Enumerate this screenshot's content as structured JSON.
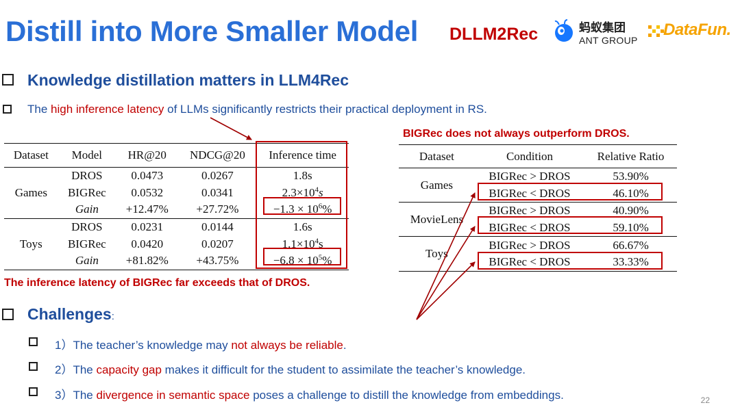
{
  "header": {
    "title": "Distill into More Smaller Model",
    "brand": "DLLM2Rec",
    "ant_group_cn": "蚂蚁集团",
    "ant_group_en": "ANT GROUP",
    "datafun": "DataFun."
  },
  "section1": {
    "heading": "Knowledge distillation matters in LLM4Rec",
    "point_prefix": "The ",
    "point_highlight": "high inference latency",
    "point_suffix": " of LLMs significantly restricts their practical deployment in RS."
  },
  "table1": {
    "headers": [
      "Dataset",
      "Model",
      "HR@20",
      "NDCG@20",
      "Inference time"
    ],
    "groups": [
      {
        "dataset": "Games",
        "rows": [
          {
            "model": "DROS",
            "hr": "0.0473",
            "ndcg": "0.0267",
            "time": "1.8s"
          },
          {
            "model": "BIGRec",
            "hr": "0.0532",
            "ndcg": "0.0341",
            "time_base": "2.3×10",
            "time_exp": "4",
            "time_unit": "s"
          },
          {
            "model": "Gain",
            "hr": "+12.47%",
            "ndcg": "+27.72%",
            "time_base": "−1.3 × 10",
            "time_exp": "6",
            "time_unit": "%"
          }
        ]
      },
      {
        "dataset": "Toys",
        "rows": [
          {
            "model": "DROS",
            "hr": "0.0231",
            "ndcg": "0.0144",
            "time": "1.6s"
          },
          {
            "model": "BIGRec",
            "hr": "0.0420",
            "ndcg": "0.0207",
            "time_base": "1.1×10",
            "time_exp": "4",
            "time_unit": "s"
          },
          {
            "model": "Gain",
            "hr": "+81.82%",
            "ndcg": "+43.75%",
            "time_base": "−6.8 × 10",
            "time_exp": "5",
            "time_unit": "%"
          }
        ]
      }
    ],
    "caption": "The inference latency of BIGRec far exceeds that of DROS."
  },
  "table2": {
    "caption": "BIGRec does not always outperform DROS.",
    "headers": [
      "Dataset",
      "Condition",
      "Relative Ratio"
    ],
    "groups": [
      {
        "dataset": "Games",
        "rows": [
          {
            "condition": "BIGRec > DROS",
            "ratio": "53.90%"
          },
          {
            "condition": "BIGRec < DROS",
            "ratio": "46.10%"
          }
        ]
      },
      {
        "dataset": "MovieLens",
        "rows": [
          {
            "condition": "BIGRec > DROS",
            "ratio": "40.90%"
          },
          {
            "condition": "BIGRec < DROS",
            "ratio": "59.10%"
          }
        ]
      },
      {
        "dataset": "Toys",
        "rows": [
          {
            "condition": "BIGRec > DROS",
            "ratio": "66.67%"
          },
          {
            "condition": "BIGRec < DROS",
            "ratio": "33.33%"
          }
        ]
      }
    ]
  },
  "section2": {
    "heading": "Challenges",
    "colon": ":",
    "items": [
      {
        "num": "1）",
        "prefix": "The teacher’s knowledge may ",
        "highlight": "not always be reliable",
        "suffix": "."
      },
      {
        "num": "2）",
        "prefix": "The ",
        "highlight": "capacity gap",
        "suffix": " makes it difficult for the student to assimilate the teacher’s knowledge."
      },
      {
        "num": "3）",
        "prefix": "The ",
        "highlight": "divergence in semantic space",
        "suffix": " poses a challenge to distill the knowledge from embeddings."
      }
    ]
  },
  "page_number": "22",
  "colors": {
    "title_blue": "#2a6fd6",
    "text_blue": "#1f4e9c",
    "accent_red": "#c00000",
    "datafun_orange": "#f5a300",
    "ant_blue": "#1677ff"
  }
}
